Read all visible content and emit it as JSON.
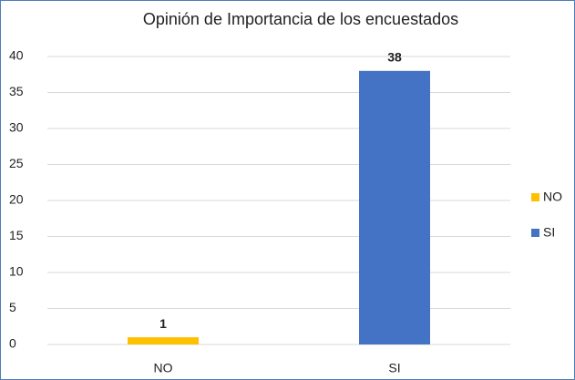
{
  "chart_data": {
    "type": "bar",
    "title": "Opinión de Importancia de los encuestados",
    "categories": [
      "NO",
      "SI"
    ],
    "values": [
      1,
      38
    ],
    "colors": [
      "#ffc000",
      "#4472c4"
    ],
    "ylim": [
      0,
      40
    ],
    "yticks": [
      0,
      5,
      10,
      15,
      20,
      25,
      30,
      35,
      40
    ],
    "grid": true,
    "legend": "right"
  }
}
